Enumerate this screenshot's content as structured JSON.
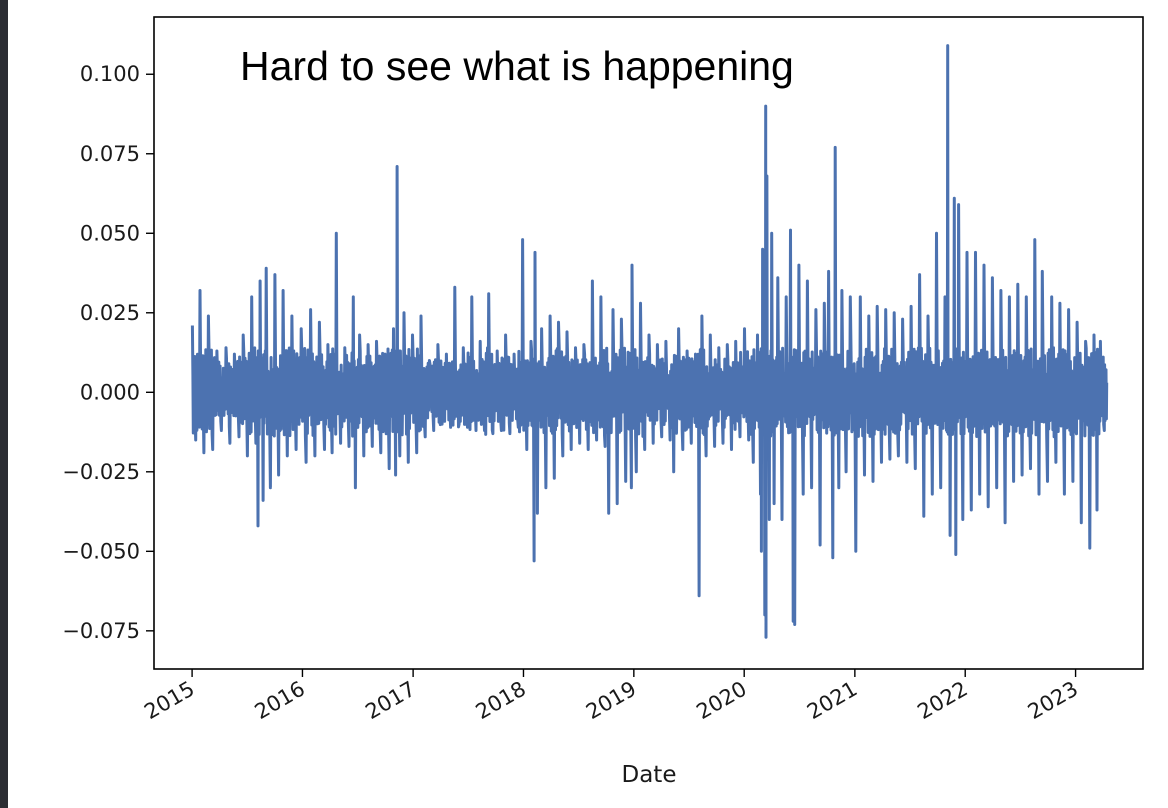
{
  "chart_data": {
    "type": "line",
    "title": "",
    "annotation": "Hard to see what is happening",
    "xlabel": "Date",
    "ylabel": "",
    "x_ticks": [
      "2015",
      "2016",
      "2017",
      "2018",
      "2019",
      "2020",
      "2021",
      "2022",
      "2023"
    ],
    "y_ticks": [
      "0.100",
      "0.075",
      "0.050",
      "0.025",
      "0.000",
      "−0.025",
      "−0.050",
      "−0.075"
    ],
    "y_tick_values": [
      0.1,
      0.075,
      0.05,
      0.025,
      0.0,
      -0.025,
      -0.05,
      -0.075
    ],
    "xlim": [
      "2014-08-28",
      "2023-08-12"
    ],
    "ylim": [
      -0.087,
      0.118
    ],
    "grid": false,
    "legend": "none",
    "series": [
      {
        "color": "#4c72b0",
        "x": [
          "2015-01-02",
          "2015-01-13",
          "2015-01-27",
          "2015-02-09",
          "2015-02-24",
          "2015-03-10",
          "2015-03-24",
          "2015-04-08",
          "2015-04-23",
          "2015-05-06",
          "2015-05-21",
          "2015-06-05",
          "2015-06-19",
          "2015-07-03",
          "2015-07-17",
          "2015-07-31",
          "2015-08-07",
          "2015-08-14",
          "2015-08-24",
          "2015-09-03",
          "2015-09-17",
          "2015-10-02",
          "2015-10-14",
          "2015-10-29",
          "2015-11-12",
          "2015-11-27",
          "2015-12-11",
          "2015-12-28",
          "2016-01-13",
          "2016-01-28",
          "2016-02-11",
          "2016-02-26",
          "2016-03-14",
          "2016-03-25",
          "2016-04-08",
          "2016-04-22",
          "2016-05-06",
          "2016-05-20",
          "2016-06-03",
          "2016-06-17",
          "2016-06-24",
          "2016-07-08",
          "2016-07-22",
          "2016-08-05",
          "2016-08-19",
          "2016-09-02",
          "2016-09-16",
          "2016-09-30",
          "2016-10-14",
          "2016-10-28",
          "2016-11-04",
          "2016-11-09",
          "2016-11-18",
          "2016-12-02",
          "2016-12-16",
          "2016-12-30",
          "2017-01-13",
          "2017-01-27",
          "2017-02-10",
          "2017-02-24",
          "2017-03-10",
          "2017-03-24",
          "2017-04-07",
          "2017-04-21",
          "2017-05-05",
          "2017-05-19",
          "2017-06-02",
          "2017-06-16",
          "2017-06-30",
          "2017-07-14",
          "2017-07-28",
          "2017-08-11",
          "2017-08-25",
          "2017-09-08",
          "2017-09-22",
          "2017-10-06",
          "2017-10-20",
          "2017-11-03",
          "2017-11-17",
          "2017-12-01",
          "2017-12-15",
          "2017-12-29",
          "2018-01-12",
          "2018-01-26",
          "2018-02-05",
          "2018-02-08",
          "2018-02-16",
          "2018-03-02",
          "2018-03-16",
          "2018-03-30",
          "2018-04-13",
          "2018-04-27",
          "2018-05-11",
          "2018-05-25",
          "2018-06-08",
          "2018-06-22",
          "2018-07-06",
          "2018-07-20",
          "2018-08-03",
          "2018-08-17",
          "2018-08-31",
          "2018-09-14",
          "2018-09-28",
          "2018-10-10",
          "2018-10-24",
          "2018-11-07",
          "2018-11-21",
          "2018-12-05",
          "2018-12-24",
          "2018-12-26",
          "2019-01-09",
          "2019-01-23",
          "2019-02-06",
          "2019-02-20",
          "2019-03-06",
          "2019-03-20",
          "2019-04-03",
          "2019-04-17",
          "2019-05-01",
          "2019-05-13",
          "2019-05-29",
          "2019-06-12",
          "2019-06-26",
          "2019-07-10",
          "2019-07-24",
          "2019-08-05",
          "2019-08-14",
          "2019-08-28",
          "2019-09-11",
          "2019-09-25",
          "2019-10-09",
          "2019-10-23",
          "2019-11-06",
          "2019-11-20",
          "2019-12-04",
          "2019-12-18",
          "2020-01-02",
          "2020-01-16",
          "2020-01-31",
          "2020-02-14",
          "2020-02-24",
          "2020-02-27",
          "2020-03-02",
          "2020-03-09",
          "2020-03-12",
          "2020-03-13",
          "2020-03-16",
          "2020-03-24",
          "2020-04-01",
          "2020-04-09",
          "2020-04-21",
          "2020-05-05",
          "2020-05-19",
          "2020-06-02",
          "2020-06-11",
          "2020-06-16",
          "2020-06-30",
          "2020-07-14",
          "2020-07-28",
          "2020-08-11",
          "2020-08-25",
          "2020-09-08",
          "2020-09-22",
          "2020-10-06",
          "2020-10-20",
          "2020-10-28",
          "2020-11-09",
          "2020-11-19",
          "2020-12-03",
          "2020-12-17",
          "2021-01-04",
          "2021-01-19",
          "2021-02-02",
          "2021-02-16",
          "2021-03-02",
          "2021-03-16",
          "2021-03-30",
          "2021-04-13",
          "2021-04-27",
          "2021-05-11",
          "2021-05-25",
          "2021-06-08",
          "2021-06-22",
          "2021-07-06",
          "2021-07-20",
          "2021-08-03",
          "2021-08-17",
          "2021-08-31",
          "2021-09-14",
          "2021-09-28",
          "2021-10-12",
          "2021-10-26",
          "2021-11-04",
          "2021-11-12",
          "2021-11-26",
          "2021-12-01",
          "2021-12-10",
          "2021-12-24",
          "2022-01-07",
          "2022-01-21",
          "2022-02-04",
          "2022-02-18",
          "2022-03-04",
          "2022-03-18",
          "2022-04-01",
          "2022-04-15",
          "2022-04-29",
          "2022-05-13",
          "2022-05-27",
          "2022-06-10",
          "2022-06-24",
          "2022-07-08",
          "2022-07-22",
          "2022-08-05",
          "2022-08-19",
          "2022-09-02",
          "2022-09-13",
          "2022-09-30",
          "2022-10-14",
          "2022-10-28",
          "2022-11-10",
          "2022-11-25",
          "2022-12-09",
          "2022-12-23",
          "2023-01-06",
          "2023-01-20",
          "2023-02-03",
          "2023-02-17",
          "2023-03-03",
          "2023-03-13",
          "2023-03-24",
          "2023-04-06",
          "2023-04-14"
        ],
        "y": [
          0.021,
          -0.015,
          0.032,
          -0.019,
          0.024,
          -0.018,
          0.013,
          -0.012,
          0.014,
          -0.016,
          0.012,
          -0.014,
          0.018,
          -0.02,
          0.03,
          -0.016,
          -0.042,
          0.035,
          -0.034,
          0.039,
          -0.03,
          0.037,
          -0.026,
          0.032,
          -0.02,
          0.024,
          -0.018,
          0.02,
          -0.022,
          0.026,
          -0.02,
          0.022,
          -0.018,
          0.015,
          -0.019,
          0.05,
          -0.016,
          0.014,
          -0.017,
          0.03,
          -0.03,
          0.018,
          -0.02,
          0.015,
          -0.017,
          0.016,
          -0.019,
          0.012,
          -0.024,
          0.02,
          -0.026,
          0.071,
          -0.02,
          0.025,
          -0.022,
          0.018,
          -0.019,
          0.024,
          -0.014,
          0.01,
          -0.012,
          0.015,
          -0.01,
          0.012,
          -0.011,
          0.033,
          -0.01,
          0.014,
          -0.011,
          0.03,
          -0.012,
          0.016,
          -0.012,
          0.031,
          -0.013,
          0.013,
          -0.012,
          0.018,
          -0.013,
          0.012,
          -0.011,
          0.048,
          -0.018,
          0.016,
          -0.053,
          0.044,
          -0.038,
          0.02,
          -0.03,
          0.024,
          -0.027,
          0.022,
          -0.02,
          0.019,
          -0.018,
          0.014,
          -0.016,
          0.015,
          -0.018,
          0.035,
          -0.015,
          0.03,
          -0.017,
          -0.038,
          0.026,
          -0.035,
          0.023,
          -0.028,
          -0.03,
          0.04,
          -0.025,
          0.028,
          -0.018,
          0.018,
          -0.016,
          0.015,
          -0.014,
          0.016,
          -0.015,
          -0.025,
          0.02,
          -0.018,
          0.013,
          -0.016,
          0.012,
          -0.064,
          0.024,
          -0.02,
          0.018,
          -0.017,
          0.014,
          -0.016,
          0.015,
          -0.018,
          0.016,
          -0.014,
          0.02,
          -0.015,
          -0.022,
          0.018,
          -0.032,
          -0.05,
          0.045,
          -0.07,
          0.09,
          -0.077,
          0.068,
          -0.04,
          0.05,
          -0.035,
          0.036,
          -0.04,
          0.03,
          0.051,
          -0.072,
          -0.073,
          0.04,
          -0.032,
          0.035,
          -0.03,
          0.026,
          -0.048,
          0.028,
          0.038,
          -0.052,
          0.077,
          -0.03,
          0.032,
          -0.025,
          0.03,
          -0.05,
          0.03,
          -0.026,
          0.024,
          -0.028,
          0.027,
          -0.022,
          0.026,
          -0.021,
          0.025,
          -0.02,
          0.023,
          -0.022,
          0.027,
          -0.024,
          0.037,
          -0.039,
          0.024,
          -0.032,
          0.05,
          -0.03,
          0.03,
          0.109,
          -0.045,
          0.061,
          -0.051,
          0.059,
          -0.04,
          0.044,
          -0.037,
          0.044,
          -0.032,
          0.04,
          -0.036,
          0.036,
          -0.03,
          0.032,
          -0.041,
          0.03,
          -0.028,
          0.034,
          -0.026,
          0.03,
          -0.024,
          0.048,
          -0.032,
          0.038,
          -0.028,
          0.03,
          -0.022,
          0.028,
          -0.032,
          0.026,
          -0.028,
          0.022,
          -0.041,
          0.016,
          -0.049,
          0.018,
          -0.037,
          0.016,
          -0.012,
          0.003
        ]
      }
    ]
  }
}
